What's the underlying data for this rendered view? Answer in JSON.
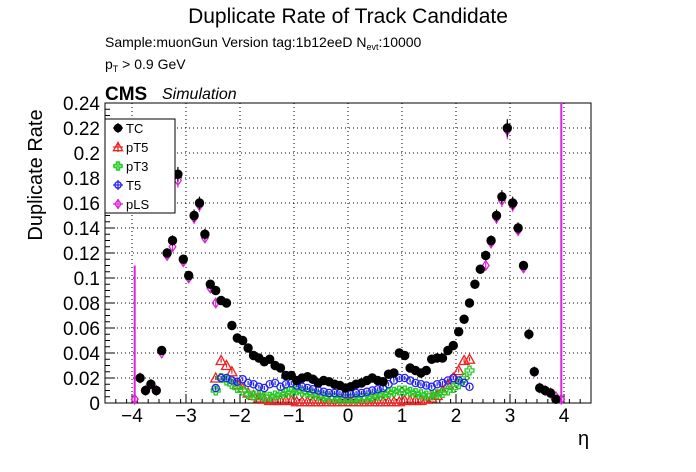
{
  "header": {
    "title": "Duplicate Rate of Track Candidate",
    "sample_line": "Sample:muonGun   Version tag:1b12eeD  N",
    "sample_sub": "evt",
    "sample_tail": ":10000",
    "pt_main": "p",
    "pt_sub": "T",
    "pt_tail": " > 0.9 GeV",
    "cms": "CMS",
    "simulation": "Simulation"
  },
  "chart_data": {
    "type": "scatter",
    "title": "Duplicate Rate of Track Candidate",
    "xlabel": "η",
    "ylabel": "Duplicate Rate",
    "xlim": [
      -4.5,
      4.5
    ],
    "ylim": [
      0,
      0.24
    ],
    "xticks": [
      -4,
      -3,
      -2,
      -1,
      0,
      1,
      2,
      3,
      4
    ],
    "xtick_labels": [
      "−4",
      "−3",
      "−2",
      "−1",
      "0",
      "1",
      "2",
      "3",
      "4"
    ],
    "yticks": [
      0,
      0.02,
      0.04,
      0.06,
      0.08,
      0.1,
      0.12,
      0.14,
      0.16,
      0.18,
      0.2,
      0.22,
      0.24
    ],
    "ytick_labels": [
      "0",
      "0.02",
      "0.04",
      "0.06",
      "0.08",
      "0.1",
      "0.12",
      "0.14",
      "0.16",
      "0.18",
      "0.2",
      "0.22",
      "0.24"
    ],
    "grid": true,
    "legend_position": "top-left",
    "series": [
      {
        "name": "TC",
        "color": "#000000",
        "marker": "filled-circle",
        "x": [
          -3.85,
          -3.75,
          -3.65,
          -3.55,
          -3.45,
          -3.35,
          -3.25,
          -3.15,
          -3.05,
          -2.95,
          -2.85,
          -2.75,
          -2.65,
          -2.55,
          -2.45,
          -2.35,
          -2.25,
          -2.15,
          -2.05,
          -1.95,
          -1.85,
          -1.75,
          -1.65,
          -1.55,
          -1.45,
          -1.35,
          -1.25,
          -1.15,
          -1.05,
          -0.95,
          -0.85,
          -0.75,
          -0.65,
          -0.55,
          -0.45,
          -0.35,
          -0.25,
          -0.15,
          -0.05,
          0.05,
          0.15,
          0.25,
          0.35,
          0.45,
          0.55,
          0.65,
          0.75,
          0.85,
          0.95,
          1.05,
          1.15,
          1.25,
          1.35,
          1.45,
          1.55,
          1.65,
          1.75,
          1.85,
          1.95,
          2.05,
          2.15,
          2.25,
          2.35,
          2.45,
          2.55,
          2.65,
          2.75,
          2.85,
          2.95,
          3.05,
          3.15,
          3.25,
          3.35,
          3.45,
          3.55,
          3.65,
          3.75,
          3.85
        ],
        "y": [
          0.02,
          0.01,
          0.015,
          0.01,
          0.042,
          0.12,
          0.13,
          0.183,
          0.115,
          0.102,
          0.15,
          0.16,
          0.135,
          0.095,
          0.09,
          0.082,
          0.08,
          0.062,
          0.052,
          0.05,
          0.044,
          0.038,
          0.036,
          0.033,
          0.035,
          0.03,
          0.028,
          0.022,
          0.022,
          0.018,
          0.02,
          0.021,
          0.019,
          0.016,
          0.018,
          0.017,
          0.015,
          0.014,
          0.012,
          0.013,
          0.015,
          0.016,
          0.018,
          0.02,
          0.018,
          0.017,
          0.023,
          0.024,
          0.04,
          0.038,
          0.028,
          0.026,
          0.024,
          0.026,
          0.035,
          0.036,
          0.036,
          0.042,
          0.046,
          0.057,
          0.067,
          0.08,
          0.095,
          0.107,
          0.118,
          0.13,
          0.15,
          0.165,
          0.22,
          0.16,
          0.14,
          0.11,
          0.055,
          0.025,
          0.012,
          0.01,
          0.008,
          0.003
        ]
      },
      {
        "name": "pT5",
        "color": "#ee2222",
        "marker": "open-triangle",
        "x": [
          -2.45,
          -2.35,
          -2.25,
          -2.15,
          -2.05,
          -1.95,
          -1.85,
          -1.75,
          -1.65,
          -1.55,
          -1.45,
          -1.35,
          -1.25,
          -1.15,
          -1.05,
          -0.95,
          -0.85,
          -0.75,
          -0.65,
          -0.55,
          -0.45,
          -0.35,
          -0.25,
          -0.15,
          -0.05,
          0.05,
          0.15,
          0.25,
          0.35,
          0.45,
          0.55,
          0.65,
          0.75,
          0.85,
          0.95,
          1.05,
          1.15,
          1.25,
          1.35,
          1.45,
          1.55,
          1.65,
          1.75,
          1.85,
          1.95,
          2.05,
          2.15,
          2.25
        ],
        "y": [
          0.02,
          0.034,
          0.03,
          0.025,
          0.015,
          0.012,
          0.008,
          0.006,
          0.004,
          0.003,
          0.002,
          0.002,
          0.002,
          0.002,
          0.002,
          0.001,
          0.001,
          0.001,
          0.001,
          0.001,
          0.001,
          0.001,
          0.001,
          0.001,
          0.001,
          0.001,
          0.001,
          0.001,
          0.001,
          0.001,
          0.001,
          0.001,
          0.001,
          0.001,
          0.001,
          0.002,
          0.002,
          0.002,
          0.002,
          0.003,
          0.004,
          0.006,
          0.01,
          0.015,
          0.02,
          0.026,
          0.034,
          0.035
        ]
      },
      {
        "name": "pT3",
        "color": "#22cc22",
        "marker": "open-cross",
        "x": [
          -2.45,
          -2.35,
          -2.25,
          -2.15,
          -2.05,
          -1.95,
          -1.85,
          -1.75,
          -1.65,
          -1.55,
          -1.45,
          -1.35,
          -1.25,
          -1.15,
          -1.05,
          -0.95,
          -0.85,
          -0.75,
          -0.65,
          -0.55,
          -0.45,
          -0.35,
          -0.25,
          -0.15,
          -0.05,
          0.05,
          0.15,
          0.25,
          0.35,
          0.45,
          0.55,
          0.65,
          0.75,
          0.85,
          0.95,
          1.05,
          1.15,
          1.25,
          1.35,
          1.45,
          1.55,
          1.65,
          1.75,
          1.85,
          1.95,
          2.05,
          2.15,
          2.25
        ],
        "y": [
          0.01,
          0.02,
          0.018,
          0.015,
          0.012,
          0.01,
          0.007,
          0.006,
          0.006,
          0.005,
          0.005,
          0.006,
          0.007,
          0.008,
          0.009,
          0.01,
          0.009,
          0.008,
          0.007,
          0.006,
          0.005,
          0.004,
          0.004,
          0.003,
          0.003,
          0.003,
          0.003,
          0.004,
          0.004,
          0.005,
          0.006,
          0.007,
          0.008,
          0.009,
          0.01,
          0.01,
          0.009,
          0.008,
          0.007,
          0.006,
          0.006,
          0.007,
          0.008,
          0.01,
          0.012,
          0.015,
          0.02,
          0.026
        ]
      },
      {
        "name": "T5",
        "color": "#2222ee",
        "marker": "open-circle",
        "x": [
          -2.45,
          -2.35,
          -2.25,
          -2.15,
          -2.05,
          -1.95,
          -1.85,
          -1.75,
          -1.65,
          -1.55,
          -1.45,
          -1.35,
          -1.25,
          -1.15,
          -1.05,
          -0.95,
          -0.85,
          -0.75,
          -0.65,
          -0.55,
          -0.45,
          -0.35,
          -0.25,
          -0.15,
          -0.05,
          0.05,
          0.15,
          0.25,
          0.35,
          0.45,
          0.55,
          0.65,
          0.75,
          0.85,
          0.95,
          1.05,
          1.15,
          1.25,
          1.35,
          1.45,
          1.55,
          1.65,
          1.75,
          1.85,
          1.95,
          2.05,
          2.15,
          2.25
        ],
        "y": [
          0.012,
          0.02,
          0.02,
          0.018,
          0.017,
          0.019,
          0.016,
          0.015,
          0.013,
          0.012,
          0.015,
          0.016,
          0.013,
          0.015,
          0.016,
          0.014,
          0.013,
          0.012,
          0.011,
          0.01,
          0.009,
          0.008,
          0.008,
          0.008,
          0.007,
          0.007,
          0.008,
          0.008,
          0.009,
          0.01,
          0.011,
          0.012,
          0.015,
          0.018,
          0.02,
          0.02,
          0.018,
          0.016,
          0.015,
          0.014,
          0.013,
          0.015,
          0.016,
          0.018,
          0.02,
          0.018,
          0.016,
          0.013
        ]
      },
      {
        "name": "pLS",
        "color": "#dd22dd",
        "marker": "open-diamond",
        "x": [
          -3.95,
          -3.85,
          -3.75,
          -3.65,
          -3.55,
          -3.45,
          -3.35,
          -3.25,
          -3.15,
          -3.05,
          -2.95,
          -2.85,
          -2.75,
          -2.65,
          -2.55,
          -2.45,
          2.55,
          2.65,
          2.75,
          2.85,
          2.95,
          3.05,
          3.15,
          3.25,
          3.35,
          3.45,
          3.55,
          3.65,
          3.75,
          3.85,
          3.95
        ],
        "y": [
          0.003,
          0.02,
          0.01,
          0.015,
          0.01,
          0.04,
          0.118,
          0.125,
          0.178,
          0.113,
          0.1,
          0.148,
          0.158,
          0.132,
          0.092,
          0.08,
          0.11,
          0.128,
          0.148,
          0.162,
          0.218,
          0.158,
          0.138,
          0.108,
          0.055,
          0.025,
          0.012,
          0.01,
          0.008,
          0.005,
          0.003
        ]
      }
    ],
    "error_spikes": [
      {
        "series": "pLS",
        "x": -3.95,
        "y_high": 0.11
      },
      {
        "series": "pLS",
        "x": 3.95,
        "y_high": 0.24
      }
    ]
  }
}
